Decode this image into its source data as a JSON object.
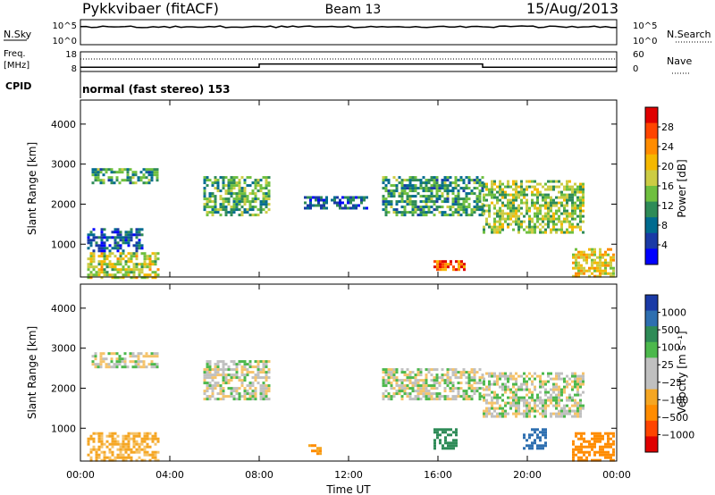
{
  "header": {
    "station": "Pykkvibaer (fitACF)",
    "beam": "Beam 13",
    "date": "15/Aug/2013",
    "cpid_label": "CPID",
    "cpid_value": "normal (fast stereo) 153"
  },
  "strips": {
    "nsky": {
      "left_label": "N.Sky",
      "top_tick": "10^5",
      "bottom_tick": "10^0",
      "right_label": "N.Search",
      "right_top_tick": "10^5",
      "right_bottom_tick": "10^0"
    },
    "freq": {
      "left_label_1": "Freq.",
      "left_label_2": "[MHz]",
      "top_tick": "18",
      "bottom_tick": "8",
      "right_label": "Nave",
      "right_top_tick": "60",
      "right_bottom_tick": "0",
      "levels_mhz": [
        {
          "from": "00:00",
          "to": "08:00",
          "value": 10.2
        },
        {
          "from": "08:00",
          "to": "18:00",
          "value": 11.8
        },
        {
          "from": "18:00",
          "to": "24:00",
          "value": 10.2
        }
      ]
    }
  },
  "panels": {
    "power": {
      "ylabel": "Slant Range [km]",
      "cbar_label": "Power [dB]",
      "cbar_ticks": [
        "28",
        "24",
        "20",
        "16",
        "12",
        "8",
        "4"
      ],
      "cbar_colors": [
        "#e00000",
        "#ff4500",
        "#ff8c00",
        "#f5b800",
        "#cccc44",
        "#6fbf3f",
        "#2e8b57",
        "#006b8f",
        "#1a3aa6",
        "#0000ff"
      ]
    },
    "velocity": {
      "ylabel": "Slant Range [km]",
      "cbar_label": "Velocity [m s⁻¹]",
      "cbar_ticks": [
        "1000",
        "500",
        "100",
        "25",
        "−25",
        "−100",
        "−500",
        "−1000"
      ],
      "cbar_colors": [
        "#1a3aa6",
        "#2e6fb0",
        "#2e8b57",
        "#4cb84c",
        "#c0c0c0",
        "#c0c0c0",
        "#f5a623",
        "#ff8c00",
        "#ff4500",
        "#e00000"
      ]
    }
  },
  "chart_data": {
    "type": "heatmap",
    "title": "Pykkvibaer (fitACF) Beam 13 15/Aug/2013",
    "xlabel": "Time UT",
    "ylabel": "Slant Range [km]",
    "x_ticks": [
      "00:00",
      "04:00",
      "08:00",
      "12:00",
      "16:00",
      "20:00",
      "00:00"
    ],
    "y_ticks": [
      "1000",
      "2000",
      "3000",
      "4000"
    ],
    "xlim_hours": [
      0,
      24
    ],
    "ylim_km": [
      180,
      4600
    ],
    "power_regions": [
      {
        "t0": 0.3,
        "t1": 3.5,
        "r0": 180,
        "r1": 800,
        "db": 18
      },
      {
        "t0": 0.3,
        "t1": 2.8,
        "r0": 800,
        "r1": 1400,
        "db": 8
      },
      {
        "t0": 0.5,
        "t1": 3.5,
        "r0": 2500,
        "r1": 2900,
        "db": 12
      },
      {
        "t0": 5.5,
        "t1": 8.5,
        "r0": 1700,
        "r1": 2700,
        "db": 14
      },
      {
        "t0": 10.0,
        "t1": 12.8,
        "r0": 1900,
        "r1": 2200,
        "db": 8
      },
      {
        "t0": 13.5,
        "t1": 18.0,
        "r0": 1700,
        "r1": 2700,
        "db": 12
      },
      {
        "t0": 15.8,
        "t1": 17.2,
        "r0": 350,
        "r1": 600,
        "db": 26
      },
      {
        "t0": 18.0,
        "t1": 22.5,
        "r0": 1300,
        "r1": 2600,
        "db": 16
      },
      {
        "t0": 22.0,
        "t1": 23.9,
        "r0": 180,
        "r1": 900,
        "db": 20
      }
    ],
    "velocity_regions": [
      {
        "t0": 0.3,
        "t1": 3.5,
        "r0": 180,
        "r1": 900,
        "v": -120
      },
      {
        "t0": 0.5,
        "t1": 3.5,
        "r0": 2500,
        "r1": 2900,
        "v": 0
      },
      {
        "t0": 5.5,
        "t1": 8.5,
        "r0": 1700,
        "r1": 2700,
        "v": 0
      },
      {
        "t0": 10.2,
        "t1": 10.8,
        "r0": 350,
        "r1": 600,
        "v": -300
      },
      {
        "t0": 13.5,
        "t1": 18.0,
        "r0": 1700,
        "r1": 2500,
        "v": 0
      },
      {
        "t0": 15.8,
        "t1": 16.8,
        "r0": 500,
        "r1": 1000,
        "v": 150
      },
      {
        "t0": 18.0,
        "t1": 22.5,
        "r0": 1300,
        "r1": 2400,
        "v": 0
      },
      {
        "t0": 19.8,
        "t1": 20.8,
        "r0": 500,
        "r1": 1000,
        "v": 600
      },
      {
        "t0": 22.0,
        "t1": 23.9,
        "r0": 180,
        "r1": 900,
        "v": -400
      }
    ]
  }
}
